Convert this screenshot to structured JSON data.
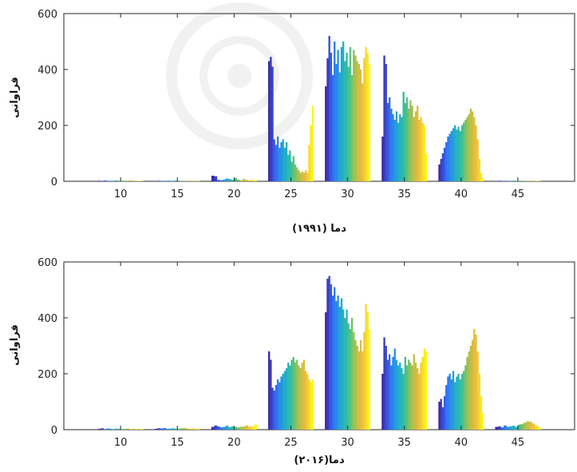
{
  "figure": {
    "colormap": [
      "#3e26a8",
      "#2f6ff8",
      "#1fa6d6",
      "#2ec09b",
      "#a6c14a",
      "#f1b93a",
      "#f9fb15"
    ],
    "watermark_icon": "rosette-logo-icon"
  },
  "chart_data": [
    {
      "type": "bar",
      "xlabel": "دما (۱۹۹۱)",
      "ylabel": "فراوانی",
      "xlim": [
        5,
        50
      ],
      "ylim": [
        0,
        600
      ],
      "xticks": [
        10,
        15,
        20,
        25,
        30,
        35,
        40,
        45
      ],
      "yticks": [
        0,
        200,
        400,
        600
      ],
      "grid": false,
      "groups": [
        {
          "x_start": 8.0,
          "x_end": 12.0,
          "values": [
            2,
            1,
            3,
            2,
            1,
            2,
            3,
            2,
            1,
            2,
            2,
            3,
            1,
            2,
            2,
            1
          ]
        },
        {
          "x_start": 13.0,
          "x_end": 17.0,
          "values": [
            1,
            2,
            1,
            1,
            2,
            2,
            1,
            3,
            2,
            1,
            1,
            2,
            1,
            2,
            1,
            1
          ]
        },
        {
          "x_start": 18.0,
          "x_end": 22.0,
          "values": [
            20,
            18,
            5,
            4,
            6,
            10,
            8,
            5,
            12,
            6,
            4,
            8,
            5,
            3,
            5,
            4
          ]
        },
        {
          "x_start": 23.0,
          "x_end": 27.0,
          "values": [
            430,
            445,
            410,
            150,
            130,
            160,
            120,
            140,
            150,
            120,
            140,
            95,
            110,
            70,
            90,
            60,
            50,
            40,
            30,
            35,
            30,
            40,
            30,
            130,
            200,
            270
          ]
        },
        {
          "x_start": 28.0,
          "x_end": 32.0,
          "values": [
            340,
            440,
            520,
            460,
            380,
            500,
            420,
            470,
            390,
            480,
            500,
            430,
            460,
            410,
            480,
            380,
            470,
            450,
            430,
            420,
            400,
            350,
            440,
            480,
            460,
            420
          ]
        },
        {
          "x_start": 33.0,
          "x_end": 37.0,
          "values": [
            160,
            450,
            420,
            280,
            300,
            260,
            240,
            220,
            250,
            210,
            240,
            230,
            320,
            280,
            300,
            260,
            290,
            270,
            230,
            250,
            270,
            220,
            230,
            210,
            200,
            100
          ]
        },
        {
          "x_start": 38.0,
          "x_end": 42.0,
          "values": [
            60,
            80,
            100,
            120,
            140,
            160,
            170,
            180,
            190,
            200,
            185,
            195,
            180,
            200,
            210,
            220,
            230,
            240,
            260,
            250,
            230,
            200,
            150,
            80,
            30,
            10
          ]
        },
        {
          "x_start": 43.0,
          "x_end": 47.0,
          "values": [
            1,
            2,
            1,
            2,
            1,
            1,
            2,
            1,
            2,
            1,
            1,
            2,
            1,
            1,
            2,
            1
          ]
        }
      ]
    },
    {
      "type": "bar",
      "xlabel": "دما(۲۰۱۶)",
      "ylabel": "فراوانی",
      "xlim": [
        5,
        50
      ],
      "ylim": [
        0,
        600
      ],
      "xticks": [
        10,
        15,
        20,
        25,
        30,
        35,
        40,
        45
      ],
      "yticks": [
        0,
        200,
        400,
        600
      ],
      "grid": false,
      "groups": [
        {
          "x_start": 8.0,
          "x_end": 12.0,
          "values": [
            3,
            5,
            2,
            4,
            3,
            2,
            4,
            3,
            2,
            3,
            4,
            2,
            3,
            2,
            3,
            2
          ]
        },
        {
          "x_start": 13.0,
          "x_end": 17.0,
          "values": [
            3,
            5,
            4,
            6,
            3,
            4,
            5,
            4,
            3,
            5,
            6,
            4,
            3,
            4,
            3,
            5
          ]
        },
        {
          "x_start": 18.0,
          "x_end": 22.0,
          "values": [
            10,
            15,
            12,
            8,
            10,
            14,
            9,
            12,
            10,
            8,
            10,
            12,
            15,
            10,
            12,
            18
          ]
        },
        {
          "x_start": 23.0,
          "x_end": 27.0,
          "values": [
            280,
            250,
            150,
            140,
            160,
            180,
            170,
            190,
            200,
            210,
            220,
            240,
            230,
            250,
            260,
            240,
            250,
            230,
            220,
            240,
            250,
            210,
            200,
            180,
            170,
            180
          ]
        },
        {
          "x_start": 28.0,
          "x_end": 32.0,
          "values": [
            420,
            540,
            550,
            520,
            480,
            510,
            460,
            480,
            440,
            470,
            430,
            400,
            430,
            380,
            360,
            400,
            350,
            320,
            300,
            280,
            320,
            280,
            350,
            450,
            420,
            360
          ]
        },
        {
          "x_start": 33.0,
          "x_end": 37.0,
          "values": [
            200,
            330,
            300,
            250,
            270,
            230,
            260,
            290,
            250,
            230,
            240,
            220,
            200,
            260,
            230,
            250,
            240,
            230,
            270,
            240,
            220,
            200,
            240,
            260,
            290,
            280
          ]
        },
        {
          "x_start": 38.0,
          "x_end": 42.0,
          "values": [
            100,
            110,
            80,
            120,
            160,
            190,
            200,
            180,
            210,
            170,
            190,
            200,
            180,
            200,
            210,
            230,
            260,
            280,
            300,
            320,
            360,
            340,
            280,
            200,
            120,
            60
          ]
        },
        {
          "x_start": 43.0,
          "x_end": 47.0,
          "values": [
            10,
            12,
            8,
            15,
            10,
            12,
            14,
            10,
            18,
            20,
            25,
            30,
            28,
            22,
            15,
            10
          ]
        }
      ]
    }
  ]
}
